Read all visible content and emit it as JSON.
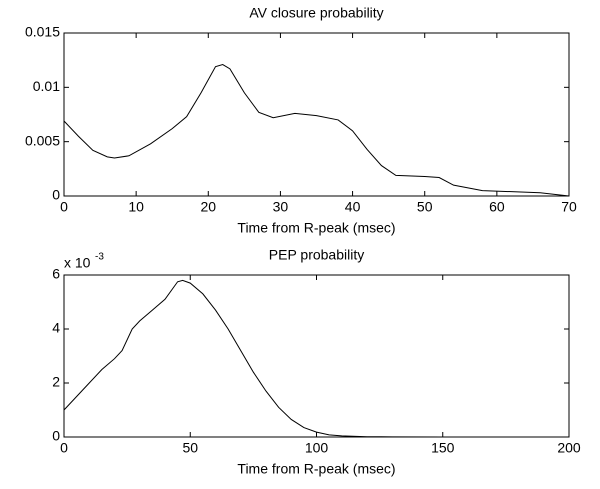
{
  "chart_data": [
    {
      "type": "line",
      "title": "AV closure probability",
      "x_label": "Time from R-peak (msec)",
      "xlim": [
        0,
        70
      ],
      "xticks": [
        0,
        10,
        20,
        30,
        40,
        50,
        60,
        70
      ],
      "ylim": [
        0,
        0.015
      ],
      "yticks": [
        0,
        0.005,
        0.01,
        0.015
      ],
      "series": [
        {
          "color": "#000000",
          "x": [
            0,
            2,
            4,
            6,
            7,
            9,
            12,
            15,
            17,
            19,
            21,
            22,
            23,
            25,
            27,
            29,
            32,
            35,
            38,
            40,
            42,
            44,
            46,
            50,
            52,
            54,
            58,
            62,
            66,
            70
          ],
          "values": [
            0.0069,
            0.0055,
            0.0042,
            0.0036,
            0.0035,
            0.0037,
            0.0048,
            0.0062,
            0.0073,
            0.0095,
            0.0119,
            0.0121,
            0.0117,
            0.0095,
            0.0077,
            0.0072,
            0.0076,
            0.0074,
            0.007,
            0.006,
            0.0043,
            0.0028,
            0.0019,
            0.0018,
            0.0017,
            0.001,
            0.0005,
            0.0004,
            0.0003,
            0
          ]
        }
      ]
    },
    {
      "type": "line",
      "title": "PEP probability",
      "x_label": "Time from R-peak (msec)",
      "y_multiplier": "x 10",
      "y_multiplier_exponent": "-3",
      "xlim": [
        0,
        200
      ],
      "xticks": [
        0,
        50,
        100,
        150,
        200
      ],
      "ylim": [
        0,
        6
      ],
      "yticks": [
        0,
        2,
        4,
        6
      ],
      "series": [
        {
          "color": "#000000",
          "x": [
            0,
            5,
            10,
            15,
            20,
            23,
            27,
            30,
            35,
            40,
            45,
            47,
            50,
            55,
            60,
            65,
            70,
            75,
            80,
            85,
            90,
            95,
            100,
            105,
            110,
            120,
            130,
            150,
            170
          ],
          "values": [
            1.0,
            1.5,
            2.0,
            2.5,
            2.9,
            3.2,
            4.0,
            4.3,
            4.7,
            5.1,
            5.75,
            5.8,
            5.7,
            5.3,
            4.7,
            4.0,
            3.2,
            2.4,
            1.7,
            1.1,
            0.65,
            0.35,
            0.18,
            0.08,
            0.04,
            0.01,
            0.005,
            0.002,
            0.001
          ]
        }
      ]
    }
  ]
}
